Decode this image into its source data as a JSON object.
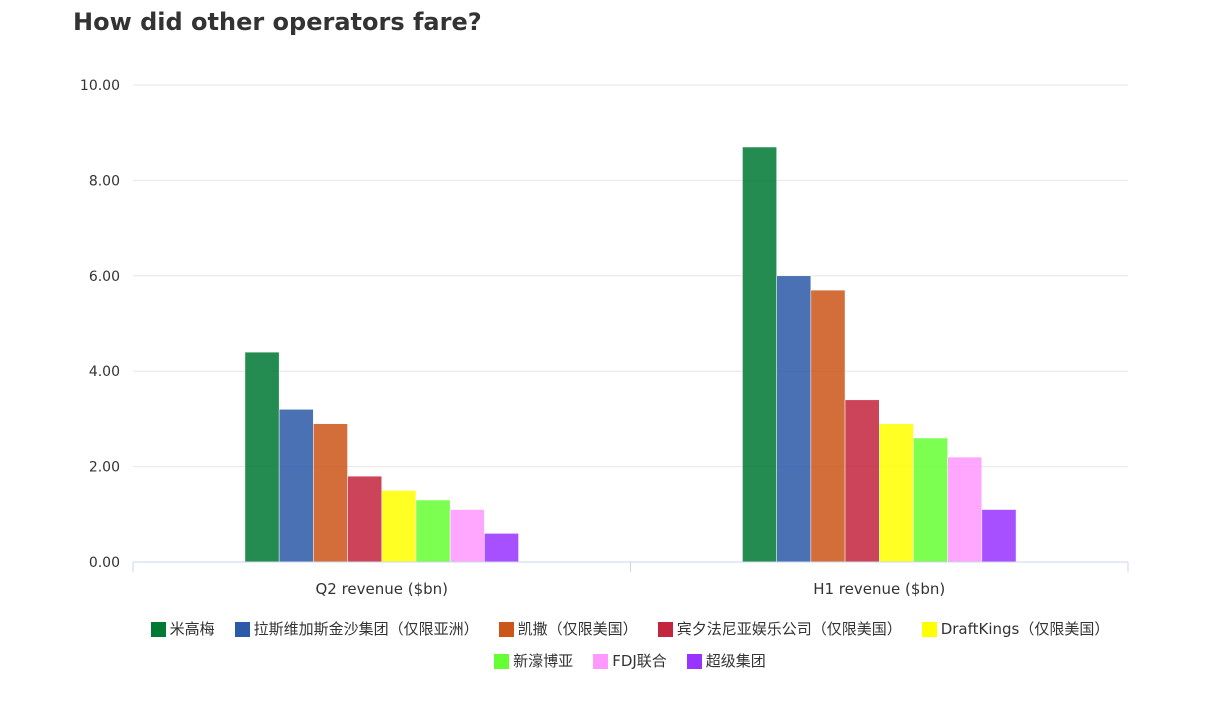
{
  "title": "How did other operators fare?",
  "chart_data": {
    "type": "bar",
    "categories": [
      "Q2 revenue ($bn)",
      "H1 revenue ($bn)"
    ],
    "series": [
      {
        "name": "米高梅",
        "color": "#007934",
        "values": [
          4.4,
          8.7
        ]
      },
      {
        "name": "拉斯维加斯金沙集团（仅限亚洲）",
        "color": "#2b5aa8",
        "values": [
          3.2,
          6.0
        ]
      },
      {
        "name": "凯撒（仅限美国）",
        "color": "#cc5518",
        "values": [
          2.9,
          5.7
        ]
      },
      {
        "name": "宾夕法尼亚娱乐公司（仅限美国）",
        "color": "#c4253e",
        "values": [
          1.8,
          3.4
        ]
      },
      {
        "name": "DraftKings（仅限美国）",
        "color": "#ffff00",
        "values": [
          1.5,
          2.9
        ]
      },
      {
        "name": "新濠博亚",
        "color": "#66ff33",
        "values": [
          1.3,
          2.6
        ]
      },
      {
        "name": "FDJ联合",
        "color": "#ff99ff",
        "values": [
          1.1,
          2.2
        ]
      },
      {
        "name": "超级集团",
        "color": "#9933ff",
        "values": [
          0.6,
          1.1
        ]
      }
    ],
    "ylim": [
      0,
      10
    ],
    "yticks": [
      "0.00",
      "2.00",
      "4.00",
      "6.00",
      "8.00",
      "10.00"
    ],
    "grid": true,
    "legend_position": "bottom"
  }
}
